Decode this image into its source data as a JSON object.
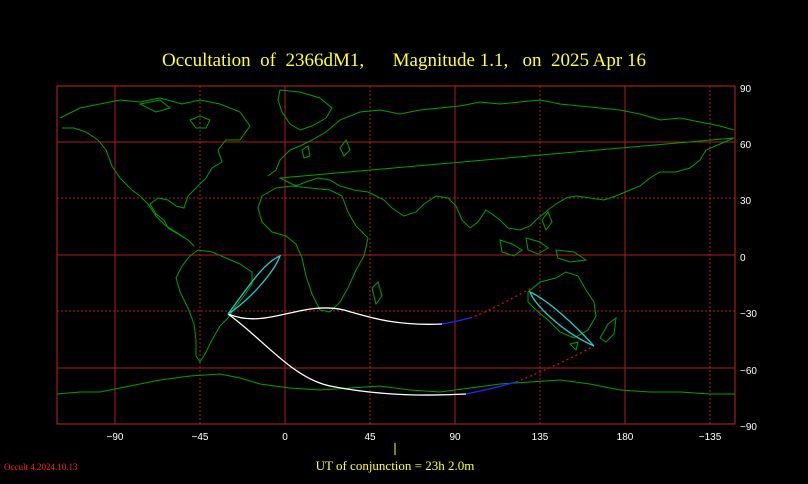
{
  "title": "Occultation  of  2366dM1,      Magnitude 1.1,   on  2025 Apr 16",
  "conjunction_label": "UT of conjunction = 23h  2.0m",
  "version_label": "Occult 4.2024.10.13",
  "chart_data": {
    "type": "map",
    "projection": "equirectangular",
    "lon_ticks": [
      "−90",
      "−45",
      "0",
      "45",
      "90",
      "135",
      "180",
      "−135"
    ],
    "lat_ticks": [
      "90",
      "60",
      "30",
      "0",
      "−30",
      "−60",
      "−90"
    ],
    "grid": true,
    "colors": {
      "coast": "#00a000",
      "grid": "#b01c1c",
      "frame": "#c02222",
      "path": "#ffffff",
      "path_high": "#2222ff",
      "path_dotted": "#cc1111",
      "rise_set": "#22cccc"
    }
  }
}
